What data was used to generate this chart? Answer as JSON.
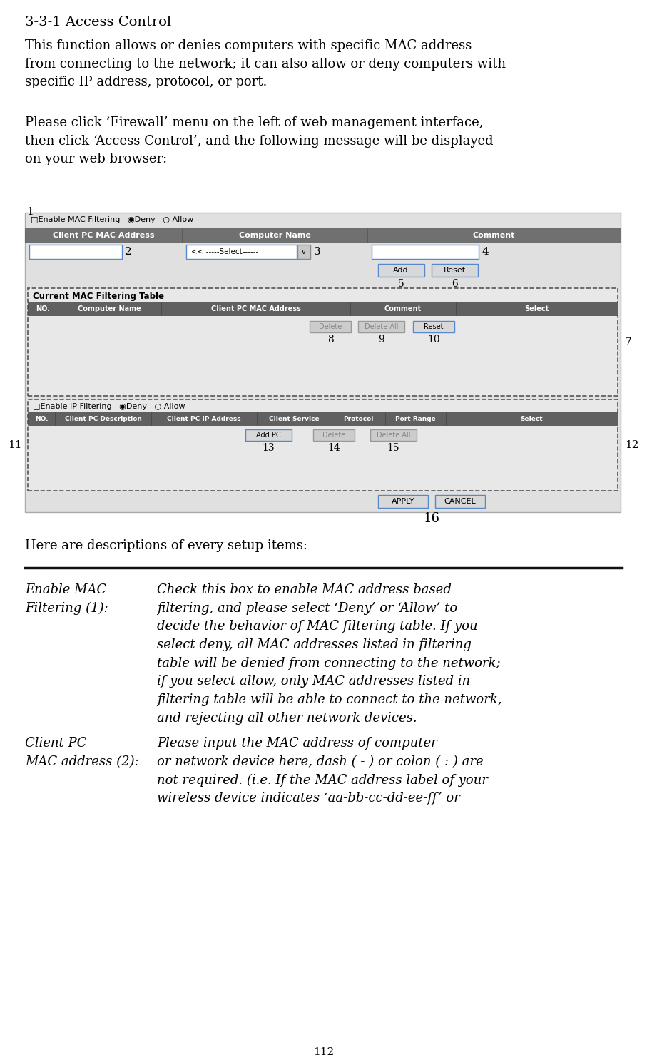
{
  "title": "3-3-1 Access Control",
  "para1": "This function allows or denies computers with specific MAC address\nfrom connecting to the network; it can also allow or deny computers with\nspecific IP address, protocol, or port.",
  "para2": "Please click ‘Firewall’ menu on the left of web management interface,\nthen click ‘Access Control’, and the following message will be displayed\non your web browser:",
  "para3": "Here are descriptions of every setup items:",
  "page_number": "112",
  "bg_color": "#ffffff",
  "label1": "1",
  "label2": "2",
  "label3": "3",
  "label4": "4",
  "label5": "5",
  "label6": "6",
  "label7": "7",
  "label8": "8",
  "label9": "9",
  "label10": "10",
  "label11": "11",
  "label12": "12",
  "label13": "13",
  "label14": "14",
  "label15": "15",
  "label16": "16",
  "desc1_term": "Enable MAC\nFiltering (1):",
  "desc1_body": "Check this box to enable MAC address based\nfiltering, and please select ‘Deny’ or ‘Allow’ to\ndecide the behavior of MAC filtering table. If you\nselect deny, all MAC addresses listed in filtering\ntable will be denied from connecting to the network;\nif you select allow, only MAC addresses listed in\nfiltering table will be able to connect to the network,\nand rejecting all other network devices.",
  "desc2_term": "Client PC\nMAC address (2):",
  "desc2_body": "Please input the MAC address of computer\nor network device here, dash ( - ) or colon ( : ) are\nnot required. (i.e. If the MAC address label of your\nwireless device indicates ‘aa-bb-cc-dd-ee-ff’ or"
}
